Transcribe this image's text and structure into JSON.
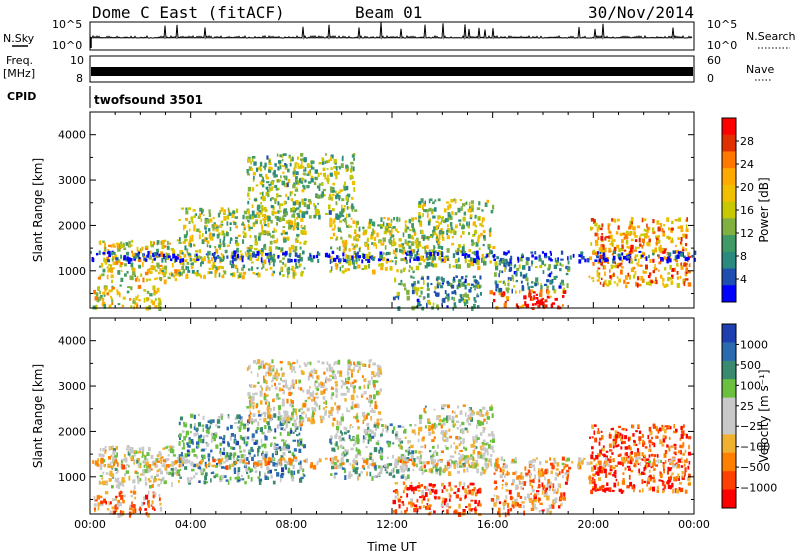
{
  "header": {
    "station": "Dome C East (fitACF)",
    "beam": "Beam 01",
    "date": "30/Nov/2014"
  },
  "top_panels": {
    "nsky_label": "N.Sky",
    "nsky_ticks": [
      "10^5",
      "10^0"
    ],
    "nsearch_label": "N.Search",
    "nsearch_ticks": [
      "10^5",
      "10^0"
    ],
    "freq_label": "Freq.",
    "freq_unit": "[MHz]",
    "freq_ticks": [
      "10",
      "8"
    ],
    "nave_label": "Nave",
    "nave_ticks": [
      "60",
      "0"
    ],
    "cpid_label": "CPID",
    "cpid_value": "twofsound 3501"
  },
  "chart_data": [
    {
      "type": "heatmap",
      "name": "power-panel",
      "ylabel": "Slant Range [km]",
      "xlabel": "",
      "xlim": [
        0,
        24
      ],
      "ylim": [
        180,
        4500
      ],
      "yticks": [
        "1000",
        "2000",
        "3000",
        "4000"
      ],
      "colorbar": {
        "label": "Power [dB]",
        "ticks": [
          "28",
          "24",
          "20",
          "16",
          "12",
          "8",
          "4"
        ],
        "colors": [
          "#ff0000",
          "#e03000",
          "#ff7800",
          "#ffaa00",
          "#f0c000",
          "#c8c800",
          "#7fb040",
          "#3f9a66",
          "#2a8a80",
          "#1e4fb0",
          "#0000ff"
        ]
      },
      "blobs": [
        {
          "t0": 0.1,
          "t1": 2.8,
          "r0": 200,
          "r1": 700,
          "level": 0.55
        },
        {
          "t0": 0.3,
          "t1": 3.5,
          "r0": 800,
          "r1": 1700,
          "level": 0.55
        },
        {
          "t0": 3.5,
          "t1": 8.5,
          "r0": 900,
          "r1": 2400,
          "level": 0.45
        },
        {
          "t0": 6.2,
          "t1": 10.5,
          "r0": 2200,
          "r1": 3600,
          "level": 0.4
        },
        {
          "t0": 9.5,
          "t1": 13.0,
          "r0": 1000,
          "r1": 2200,
          "level": 0.5
        },
        {
          "t0": 12.0,
          "t1": 15.5,
          "r0": 200,
          "r1": 900,
          "level": 0.3
        },
        {
          "t0": 13.0,
          "t1": 16.0,
          "r0": 1100,
          "r1": 2600,
          "level": 0.45
        },
        {
          "t0": 15.8,
          "t1": 18.8,
          "r0": 200,
          "r1": 600,
          "level": 0.85
        },
        {
          "t0": 16.0,
          "t1": 19.0,
          "r0": 600,
          "r1": 1300,
          "level": 0.3
        },
        {
          "t0": 19.8,
          "t1": 23.8,
          "r0": 700,
          "r1": 2200,
          "level": 0.7
        },
        {
          "t0": 0.0,
          "t1": 24.0,
          "r0": 1250,
          "r1": 1450,
          "level": 0.1
        }
      ]
    },
    {
      "type": "heatmap",
      "name": "velocity-panel",
      "ylabel": "Slant Range [km]",
      "xlabel": "Time UT",
      "xlim": [
        0,
        24
      ],
      "ylim": [
        180,
        4500
      ],
      "xticks": [
        "00:00",
        "04:00",
        "08:00",
        "12:00",
        "16:00",
        "20:00",
        "00:00"
      ],
      "yticks": [
        "1000",
        "2000",
        "3000",
        "4000"
      ],
      "colorbar": {
        "label": "Velocity [m s⁻¹]",
        "ticks": [
          "1000",
          "500",
          "100",
          "25",
          "−25",
          "−100",
          "−500",
          "−1000"
        ],
        "colors": [
          "#1e3fb0",
          "#2a6ab0",
          "#3a8a70",
          "#6cc040",
          "#c8c8c8",
          "#c8c8c8",
          "#f0b030",
          "#ff8000",
          "#ff4000",
          "#ff0000"
        ]
      },
      "blobs": [
        {
          "t0": 0.1,
          "t1": 2.8,
          "r0": 200,
          "r1": 700,
          "level": 0.3
        },
        {
          "t0": 0.3,
          "t1": 3.5,
          "r0": 800,
          "r1": 1700,
          "level": 0.5
        },
        {
          "t0": 3.5,
          "t1": 8.5,
          "r0": 900,
          "r1": 2400,
          "level": 0.7
        },
        {
          "t0": 6.2,
          "t1": 11.5,
          "r0": 2200,
          "r1": 3600,
          "level": 0.45
        },
        {
          "t0": 9.5,
          "t1": 13.0,
          "r0": 1000,
          "r1": 2200,
          "level": 0.6
        },
        {
          "t0": 12.0,
          "t1": 15.5,
          "r0": 200,
          "r1": 900,
          "level": 0.2
        },
        {
          "t0": 13.0,
          "t1": 16.0,
          "r0": 1100,
          "r1": 2600,
          "level": 0.5
        },
        {
          "t0": 15.8,
          "t1": 18.8,
          "r0": 200,
          "r1": 600,
          "level": 0.3
        },
        {
          "t0": 16.0,
          "t1": 19.0,
          "r0": 600,
          "r1": 1300,
          "level": 0.3
        },
        {
          "t0": 19.8,
          "t1": 23.8,
          "r0": 700,
          "r1": 2200,
          "level": 0.15
        },
        {
          "t0": 0.0,
          "t1": 24.0,
          "r0": 1250,
          "r1": 1450,
          "level": 0.4
        }
      ]
    }
  ]
}
